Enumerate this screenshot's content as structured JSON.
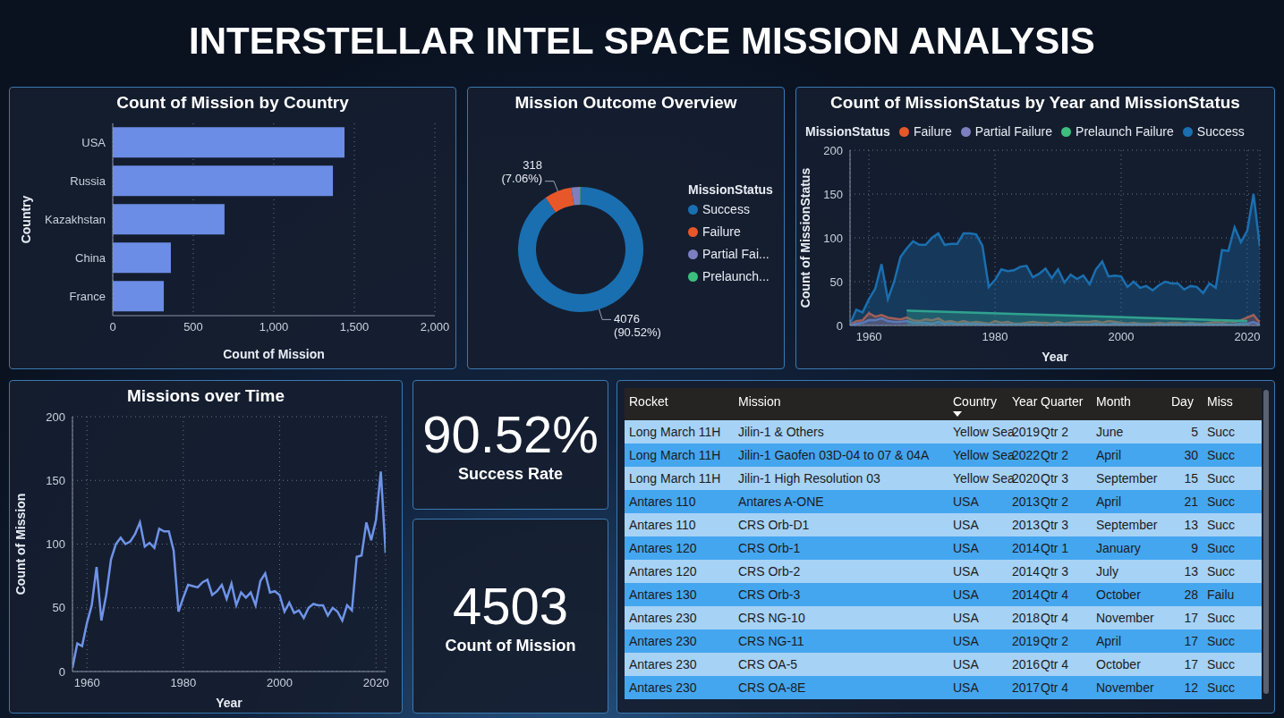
{
  "title": "INTERSTELLAR INTEL SPACE MISSION ANALYSIS",
  "chart_data": [
    {
      "type": "bar",
      "title": "Count of Mission by Country",
      "orientation": "horizontal",
      "categories": [
        "USA",
        "Russia",
        "Kazakhstan",
        "China",
        "France"
      ],
      "values": [
        1439,
        1367,
        694,
        361,
        317
      ],
      "color": "#6b8de6",
      "xlim": [
        0,
        2000
      ],
      "xticks": [
        0,
        500,
        {
          "value": 1000,
          "label": "1,000"
        },
        {
          "value": 1500,
          "label": "1,500"
        },
        {
          "value": 2000,
          "label": "2,000"
        }
      ],
      "x_label": "Count of Mission",
      "y_label": "Country",
      "grid": true
    },
    {
      "type": "pie",
      "title": "Mission Outcome Overview",
      "legend_title": "MissionStatus",
      "categories": [
        "Success",
        "Failure",
        "Partial Fai...",
        "Prelaunch..."
      ],
      "values": [
        4076,
        318,
        102,
        7
      ],
      "value_labels": [
        "4076 (90.52%)",
        "318 (7.06%)",
        null,
        null
      ],
      "colors": [
        "#1a6fb0",
        "#e8572a",
        "#7c7fc0",
        "#3dbe7f"
      ],
      "legend": "right",
      "data_labels": true
    },
    {
      "type": "area",
      "title": "Count of MissionStatus by Year and MissionStatus",
      "legend_title": "MissionStatus",
      "legend": "top-left",
      "x": [
        1957,
        1958,
        1959,
        1960,
        1961,
        1962,
        1963,
        1964,
        1965,
        1966,
        1967,
        1968,
        1969,
        1970,
        1971,
        1972,
        1973,
        1974,
        1975,
        1976,
        1977,
        1978,
        1979,
        1980,
        1981,
        1982,
        1983,
        1984,
        1985,
        1986,
        1987,
        1988,
        1989,
        1990,
        1991,
        1992,
        1993,
        1994,
        1995,
        1996,
        1997,
        1998,
        1999,
        2000,
        2001,
        2002,
        2003,
        2004,
        2005,
        2006,
        2007,
        2008,
        2009,
        2010,
        2011,
        2012,
        2013,
        2014,
        2015,
        2016,
        2017,
        2018,
        2019,
        2020,
        2021,
        2022
      ],
      "series": [
        {
          "name": "Failure",
          "color": "#e8572a",
          "values": [
            1,
            5,
            6,
            14,
            10,
            12,
            9,
            8,
            7,
            9,
            6,
            5,
            7,
            6,
            8,
            4,
            5,
            3,
            5,
            3,
            4,
            3,
            2,
            5,
            3,
            4,
            2,
            2,
            3,
            4,
            3,
            3,
            2,
            4,
            2,
            3,
            4,
            4,
            4,
            5,
            3,
            5,
            4,
            3,
            2,
            3,
            2,
            2,
            2,
            3,
            2,
            3,
            3,
            2,
            3,
            2,
            2,
            3,
            4,
            3,
            5,
            4,
            6,
            9,
            12,
            3
          ]
        },
        {
          "name": "Partial Failure",
          "color": "#7c7fc0",
          "values": [
            0,
            2,
            3,
            6,
            6,
            8,
            5,
            4,
            4,
            5,
            3,
            3,
            3,
            2,
            4,
            2,
            3,
            1,
            2,
            2,
            2,
            1,
            1,
            1,
            1,
            1,
            1,
            1,
            1,
            1,
            1,
            0,
            1,
            1,
            1,
            1,
            1,
            1,
            1,
            2,
            1,
            1,
            2,
            1,
            1,
            1,
            1,
            1,
            0,
            1,
            1,
            1,
            1,
            1,
            2,
            1,
            1,
            1,
            1,
            1,
            1,
            1,
            2,
            2,
            4,
            1
          ]
        },
        {
          "name": "Prelaunch Failure",
          "color": "#3dbe7f",
          "values": [
            null,
            null,
            null,
            null,
            null,
            null,
            null,
            null,
            null,
            17,
            null,
            null,
            null,
            null,
            null,
            null,
            null,
            null,
            null,
            null,
            null,
            null,
            null,
            null,
            null,
            null,
            null,
            null,
            null,
            null,
            null,
            null,
            null,
            null,
            null,
            null,
            null,
            null,
            null,
            null,
            null,
            null,
            null,
            null,
            null,
            null,
            null,
            null,
            null,
            null,
            null,
            null,
            null,
            null,
            null,
            null,
            null,
            null,
            null,
            null,
            null,
            null,
            null,
            5,
            null,
            null
          ]
        },
        {
          "name": "Success",
          "color": "#1a6fb0",
          "values": [
            2,
            18,
            15,
            30,
            42,
            70,
            30,
            50,
            78,
            88,
            96,
            92,
            92,
            100,
            105,
            92,
            93,
            93,
            105,
            105,
            104,
            91,
            44,
            52,
            64,
            62,
            63,
            67,
            68,
            55,
            59,
            65,
            54,
            64,
            49,
            58,
            53,
            57,
            47,
            64,
            73,
            56,
            57,
            56,
            44,
            50,
            43,
            45,
            40,
            46,
            50,
            48,
            48,
            41,
            45,
            44,
            37,
            48,
            43,
            86,
            85,
            112,
            95,
            108,
            150,
            90
          ]
        }
      ],
      "xlim": [
        1957,
        2022
      ],
      "xticks": [
        1960,
        1980,
        2000,
        2020
      ],
      "ylim": [
        0,
        200
      ],
      "yticks": [
        0,
        50,
        100,
        150,
        200
      ],
      "x_label": "Year",
      "y_label": "Count of MissionStatus",
      "grid": true
    },
    {
      "type": "line",
      "title": "Missions over Time",
      "x": [
        1957,
        1958,
        1959,
        1960,
        1961,
        1962,
        1963,
        1964,
        1965,
        1966,
        1967,
        1968,
        1969,
        1970,
        1971,
        1972,
        1973,
        1974,
        1975,
        1976,
        1977,
        1978,
        1979,
        1980,
        1981,
        1982,
        1983,
        1984,
        1985,
        1986,
        1987,
        1988,
        1989,
        1990,
        1991,
        1992,
        1993,
        1994,
        1995,
        1996,
        1997,
        1998,
        1999,
        2000,
        2001,
        2002,
        2003,
        2004,
        2005,
        2006,
        2007,
        2008,
        2009,
        2010,
        2011,
        2012,
        2013,
        2014,
        2015,
        2016,
        2017,
        2018,
        2019,
        2020,
        2021,
        2022
      ],
      "values": [
        3,
        22,
        20,
        38,
        52,
        82,
        40,
        60,
        88,
        100,
        105,
        100,
        102,
        108,
        117,
        98,
        101,
        97,
        112,
        110,
        110,
        95,
        47,
        58,
        68,
        67,
        66,
        70,
        72,
        60,
        63,
        68,
        57,
        69,
        52,
        62,
        58,
        62,
        52,
        71,
        77,
        62,
        63,
        60,
        47,
        54,
        46,
        48,
        42,
        50,
        53,
        52,
        52,
        44,
        50,
        47,
        40,
        52,
        48,
        90,
        91,
        117,
        103,
        119,
        157,
        93
      ],
      "color": "#6f93e8",
      "xlim": [
        1957,
        2022
      ],
      "xticks": [
        1960,
        1980,
        2000,
        2020
      ],
      "ylim": [
        0,
        200
      ],
      "yticks": [
        0,
        50,
        100,
        150,
        200
      ],
      "x_label": "Year",
      "y_label": "Count of Mission",
      "grid": true
    }
  ],
  "cards": [
    {
      "value": "90.52%",
      "label": "Success Rate"
    },
    {
      "value": "4503",
      "label": "Count of Mission"
    }
  ],
  "table": {
    "columns": [
      "Rocket",
      "Mission",
      "Country",
      "Year",
      "Quarter",
      "Month",
      "Day",
      "Miss"
    ],
    "rows": [
      [
        "Long March 11H",
        "Jilin-1 & Others",
        "Yellow Sea",
        2019,
        "Qtr 2",
        "June",
        5,
        "Succ"
      ],
      [
        "Long March 11H",
        "Jilin-1 Gaofen 03D-04 to 07 & 04A",
        "Yellow Sea",
        2022,
        "Qtr 2",
        "April",
        30,
        "Succ"
      ],
      [
        "Long March 11H",
        "Jilin-1 High Resolution 03",
        "Yellow Sea",
        2020,
        "Qtr 3",
        "September",
        15,
        "Succ"
      ],
      [
        "Antares 110",
        "Antares A-ONE",
        "USA",
        2013,
        "Qtr 2",
        "April",
        21,
        "Succ"
      ],
      [
        "Antares 110",
        "CRS Orb-D1",
        "USA",
        2013,
        "Qtr 3",
        "September",
        13,
        "Succ"
      ],
      [
        "Antares 120",
        "CRS Orb-1",
        "USA",
        2014,
        "Qtr 1",
        "January",
        9,
        "Succ"
      ],
      [
        "Antares 120",
        "CRS Orb-2",
        "USA",
        2014,
        "Qtr 3",
        "July",
        13,
        "Succ"
      ],
      [
        "Antares 130",
        "CRS Orb-3",
        "USA",
        2014,
        "Qtr 4",
        "October",
        28,
        "Failu"
      ],
      [
        "Antares 230",
        "CRS NG-10",
        "USA",
        2018,
        "Qtr 4",
        "November",
        17,
        "Succ"
      ],
      [
        "Antares 230",
        "CRS NG-11",
        "USA",
        2019,
        "Qtr 2",
        "April",
        17,
        "Succ"
      ],
      [
        "Antares 230",
        "CRS OA-5",
        "USA",
        2016,
        "Qtr 4",
        "October",
        17,
        "Succ"
      ],
      [
        "Antares 230",
        "CRS OA-8E",
        "USA",
        2017,
        "Qtr 4",
        "November",
        12,
        "Succ"
      ]
    ]
  }
}
